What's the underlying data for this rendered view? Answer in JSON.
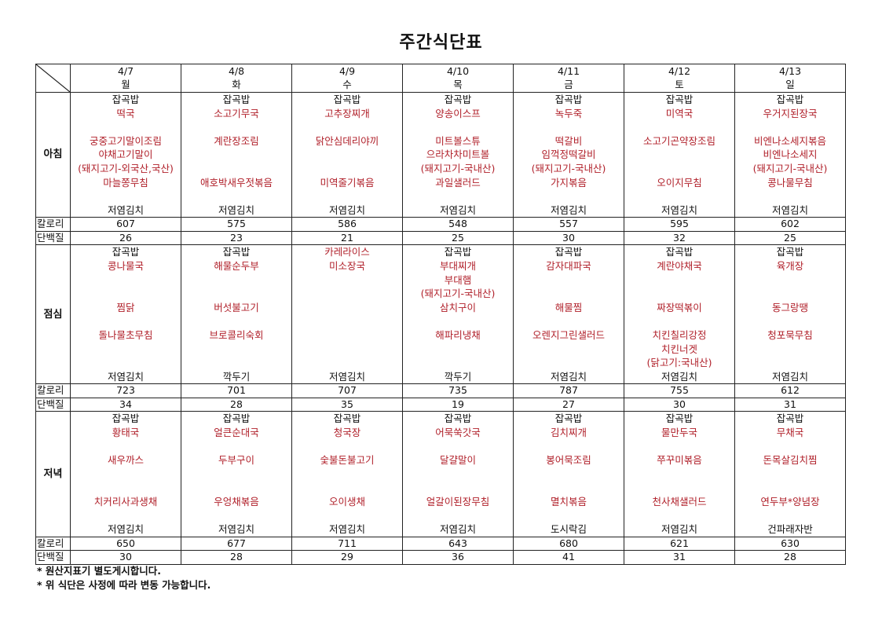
{
  "title": "주간식단표",
  "colors": {
    "dish": "#b0202a",
    "text": "#111111"
  },
  "days": [
    {
      "date": "4/7",
      "day": "월"
    },
    {
      "date": "4/8",
      "day": "화"
    },
    {
      "date": "4/9",
      "day": "수"
    },
    {
      "date": "4/10",
      "day": "목"
    },
    {
      "date": "4/11",
      "day": "금"
    },
    {
      "date": "4/12",
      "day": "토"
    },
    {
      "date": "4/13",
      "day": "일"
    }
  ],
  "row_labels": {
    "calories": "칼로리",
    "protein": "단백질"
  },
  "meals": [
    {
      "name": "아침",
      "cells": [
        {
          "lines": [
            "잡곡밥",
            "떡국",
            "",
            "궁중고기말이조림",
            "야채고기말이",
            "(돼지고기-외국산,국산)",
            "마늘쫑무침",
            "",
            "저염김치"
          ],
          "black": [
            0,
            8
          ]
        },
        {
          "lines": [
            "잡곡밥",
            "소고기무국",
            "",
            "계란장조림",
            "",
            "",
            "애호박새우젓볶음",
            "",
            "저염김치"
          ],
          "black": [
            0,
            8
          ]
        },
        {
          "lines": [
            "잡곡밥",
            "고추장찌개",
            "",
            "닭안심데리야끼",
            "",
            "",
            "미역줄기볶음",
            "",
            "저염김치"
          ],
          "black": [
            0,
            8
          ]
        },
        {
          "lines": [
            "잡곡밥",
            "양송이스프",
            "",
            "미트볼스튜",
            "으라차차미트볼",
            "(돼지고기-국내산)",
            "과일샐러드",
            "",
            "저염김치"
          ],
          "black": [
            0,
            8
          ]
        },
        {
          "lines": [
            "잡곡밥",
            "녹두죽",
            "",
            "떡갈비",
            "임꺽정떡갈비",
            "(돼지고기-국내산)",
            "가지볶음",
            "",
            "저염김치"
          ],
          "black": [
            0,
            8
          ]
        },
        {
          "lines": [
            "잡곡밥",
            "미역국",
            "",
            "소고기곤약장조림",
            "",
            "",
            "오이지무침",
            "",
            "저염김치"
          ],
          "black": [
            0,
            8
          ]
        },
        {
          "lines": [
            "잡곡밥",
            "우거지된장국",
            "",
            "비엔나소세지볶음",
            "비엔나소세지",
            "(돼지고기-국내산)",
            "콩나물무침",
            "",
            "저염김치"
          ],
          "black": [
            0,
            8
          ]
        }
      ],
      "calories": [
        "607",
        "575",
        "586",
        "548",
        "557",
        "595",
        "602"
      ],
      "protein": [
        "26",
        "23",
        "21",
        "25",
        "30",
        "32",
        "25"
      ]
    },
    {
      "name": "점심",
      "cells": [
        {
          "lines": [
            "잡곡밥",
            "콩나물국",
            "",
            "",
            "찜닭",
            "",
            "돌나물초무침",
            "",
            "",
            "저염김치"
          ],
          "black": [
            0,
            9
          ]
        },
        {
          "lines": [
            "잡곡밥",
            "해물순두부",
            "",
            "",
            "버섯불고기",
            "",
            "브로콜리숙회",
            "",
            "",
            "깍두기"
          ],
          "black": [
            0,
            9
          ]
        },
        {
          "lines": [
            "카레라이스",
            "미소장국",
            "",
            "",
            "",
            "",
            "",
            "",
            "",
            "저염김치"
          ],
          "black": [
            9
          ]
        },
        {
          "lines": [
            "잡곡밥",
            "부대찌개",
            "부대햄",
            "(돼지고기-국내산)",
            "삼치구이",
            "",
            "해파리냉채",
            "",
            "",
            "깍두기"
          ],
          "black": [
            0,
            9
          ]
        },
        {
          "lines": [
            "잡곡밥",
            "감자대파국",
            "",
            "",
            "해물찜",
            "",
            "오렌지그린샐러드",
            "",
            "",
            "저염김치"
          ],
          "black": [
            0,
            9
          ]
        },
        {
          "lines": [
            "잡곡밥",
            "계란야채국",
            "",
            "",
            "짜장떡볶이",
            "",
            "치킨칠리강정",
            "치킨너겟",
            "(닭고기:국내산)",
            "저염김치"
          ],
          "black": [
            0,
            9
          ]
        },
        {
          "lines": [
            "잡곡밥",
            "육개장",
            "",
            "",
            "동그랑땡",
            "",
            "청포묵무침",
            "",
            "",
            "저염김치"
          ],
          "black": [
            0,
            9
          ]
        }
      ],
      "calories": [
        "723",
        "701",
        "707",
        "735",
        "787",
        "755",
        "612"
      ],
      "protein": [
        "34",
        "28",
        "35",
        "19",
        "27",
        "30",
        "31"
      ]
    },
    {
      "name": "저녁",
      "cells": [
        {
          "lines": [
            "잡곡밥",
            "황태국",
            "",
            "새우까스",
            "",
            "",
            "치커리사과생채",
            "",
            "저염김치"
          ],
          "black": [
            0,
            8
          ]
        },
        {
          "lines": [
            "잡곡밥",
            "얼큰순대국",
            "",
            "두부구이",
            "",
            "",
            "우엉채볶음",
            "",
            "저염김치"
          ],
          "black": [
            0,
            8
          ]
        },
        {
          "lines": [
            "잡곡밥",
            "청국장",
            "",
            "숯불돈불고기",
            "",
            "",
            "오이생채",
            "",
            "저염김치"
          ],
          "black": [
            0,
            8
          ]
        },
        {
          "lines": [
            "잡곡밥",
            "어묵쑥갓국",
            "",
            "달걀말이",
            "",
            "",
            "얼갈이된장무침",
            "",
            "저염김치"
          ],
          "black": [
            0,
            8
          ]
        },
        {
          "lines": [
            "잡곡밥",
            "김치찌개",
            "",
            "봉어묵조림",
            "",
            "",
            "멸치볶음",
            "",
            "도시락김"
          ],
          "black": [
            0,
            8
          ]
        },
        {
          "lines": [
            "잡곡밥",
            "물만두국",
            "",
            "쭈꾸미볶음",
            "",
            "",
            "천사채샐러드",
            "",
            "저염김치"
          ],
          "black": [
            0,
            8
          ]
        },
        {
          "lines": [
            "잡곡밥",
            "무채국",
            "",
            "돈목살김치찜",
            "",
            "",
            "연두부*양념장",
            "",
            "건파래자반"
          ],
          "black": [
            0,
            8
          ]
        }
      ],
      "calories": [
        "650",
        "677",
        "711",
        "643",
        "680",
        "621",
        "630"
      ],
      "protein": [
        "30",
        "28",
        "29",
        "36",
        "41",
        "31",
        "28"
      ]
    }
  ],
  "notes": [
    "* 원산지표기 별도게시합니다.",
    "* 위 식단은 사정에 따라 변동 가능합니다."
  ]
}
